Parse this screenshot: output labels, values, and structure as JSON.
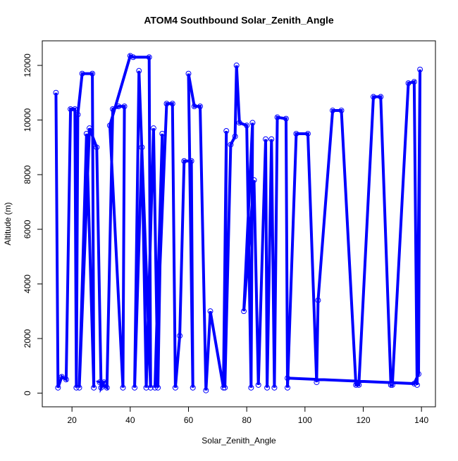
{
  "chart_data": {
    "type": "line",
    "title": "ATOM4 Southbound Solar_Zenith_Angle",
    "x_label": "Solar_Zenith_Angle",
    "y_label": "Altitude (m)",
    "color": "#0000ff",
    "markers": true,
    "x": [
      14.5,
      15.2,
      16.5,
      18,
      19.5,
      21,
      21.5,
      22,
      23.5,
      27,
      27.5,
      25,
      22.5,
      26,
      28.5,
      30,
      31,
      29.5,
      32,
      34,
      36,
      38,
      37.5,
      33,
      40,
      41,
      46.5,
      47,
      43,
      41.5,
      44,
      45.5,
      48,
      49.5,
      51,
      48.5,
      52.5,
      54.5,
      55.5,
      57,
      58.5,
      61,
      61.5,
      60,
      62,
      64,
      66,
      67.5,
      72,
      73,
      72.5,
      74.5,
      76,
      76.5,
      77.5,
      80,
      81.5,
      82,
      79,
      82.5,
      84,
      86.5,
      87,
      88.5,
      89.5,
      90.5,
      93.5,
      94,
      97,
      101,
      104,
      104.5,
      109.5,
      112.5,
      117.5,
      118.5,
      123.5,
      126,
      129.5,
      130,
      135.5,
      137.5,
      138.5,
      139.5,
      139,
      137.5,
      94
    ],
    "values": [
      11000,
      200,
      600,
      500,
      10400,
      10400,
      200,
      10200,
      11700,
      11700,
      200,
      9500,
      200,
      9700,
      9000,
      200,
      400,
      400,
      200,
      10400,
      10500,
      10500,
      200,
      9800,
      12350,
      12300,
      12300,
      200,
      11800,
      200,
      9000,
      200,
      9700,
      200,
      9500,
      200,
      10600,
      10600,
      200,
      2100,
      8500,
      8500,
      200,
      11700,
      10500,
      10500,
      100,
      3000,
      200,
      9600,
      200,
      9100,
      9400,
      12000,
      9900,
      9800,
      200,
      9900,
      3000,
      7800,
      300,
      9300,
      200,
      9300,
      200,
      10100,
      10050,
      200,
      9500,
      9500,
      400,
      3400,
      10350,
      10350,
      300,
      300,
      10850,
      10850,
      300,
      300,
      11350,
      11400,
      300,
      11850,
      700,
      350,
      550
    ],
    "xlim": [
      9.8,
      144.8
    ],
    "xticks": [
      20,
      40,
      60,
      80,
      100,
      120,
      140
    ],
    "ylim": [
      -500,
      12900
    ],
    "yticks": [
      0,
      2000,
      4000,
      6000,
      8000,
      10000,
      12000
    ]
  }
}
